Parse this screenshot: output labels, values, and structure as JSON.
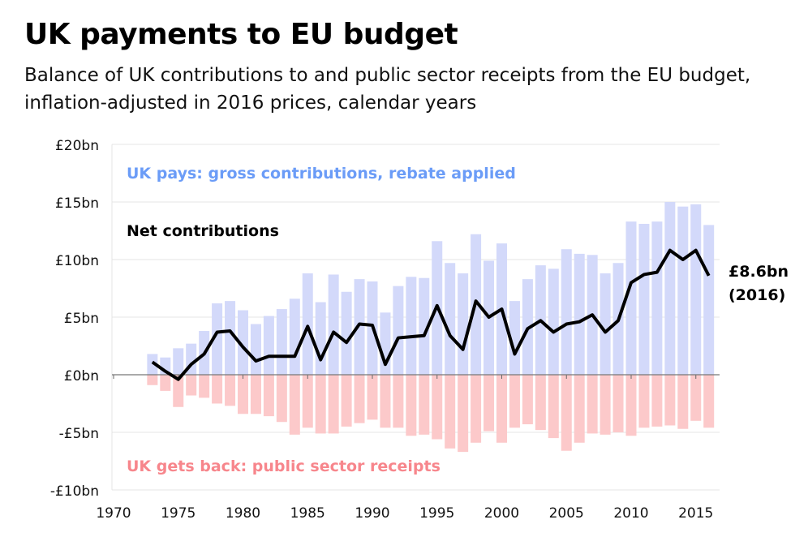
{
  "chart_data": {
    "type": "bar",
    "title": "UK payments to EU budget",
    "subtitle": "Balance of UK contributions to and public sector receipts from the EU budget, inflation-adjusted in 2016 prices, calendar years",
    "xlabel": "",
    "ylabel": "",
    "ylim": [
      -10,
      20
    ],
    "xlim": [
      1970,
      2016
    ],
    "yticks": [
      {
        "value": 20,
        "label": "£20bn"
      },
      {
        "value": 15,
        "label": "£15bn"
      },
      {
        "value": 10,
        "label": "£10bn"
      },
      {
        "value": 5,
        "label": "£5bn"
      },
      {
        "value": 0,
        "label": "£0bn"
      },
      {
        "value": -5,
        "label": "-£5bn"
      },
      {
        "value": -10,
        "label": "-£10bn"
      }
    ],
    "xticks": [
      1970,
      1975,
      1980,
      1985,
      1990,
      1995,
      2000,
      2005,
      2010,
      2015
    ],
    "grid": true,
    "x": [
      1973,
      1974,
      1975,
      1976,
      1977,
      1978,
      1979,
      1980,
      1981,
      1982,
      1983,
      1984,
      1985,
      1986,
      1987,
      1988,
      1989,
      1990,
      1991,
      1992,
      1993,
      1994,
      1995,
      1996,
      1997,
      1998,
      1999,
      2000,
      2001,
      2002,
      2003,
      2004,
      2005,
      2006,
      2007,
      2008,
      2009,
      2010,
      2011,
      2012,
      2013,
      2014,
      2015,
      2016
    ],
    "series": [
      {
        "name": "UK pays: gross contributions, rebate applied",
        "type": "bar",
        "color": "#d3d9fa",
        "label_color": "#6b9cf7",
        "values": [
          1.8,
          1.5,
          2.3,
          2.7,
          3.8,
          6.2,
          6.4,
          5.6,
          4.4,
          5.1,
          5.7,
          6.6,
          8.8,
          6.3,
          8.7,
          7.2,
          8.3,
          8.1,
          5.4,
          7.7,
          8.5,
          8.4,
          11.6,
          9.7,
          8.8,
          12.2,
          9.9,
          11.4,
          6.4,
          8.3,
          9.5,
          9.2,
          10.9,
          10.5,
          10.4,
          8.8,
          9.7,
          13.3,
          13.1,
          13.3,
          15.0,
          14.6,
          14.8,
          13.0
        ]
      },
      {
        "name": "UK gets back: public sector receipts",
        "type": "bar",
        "color": "#fcc9ca",
        "label_color": "#f7868c",
        "values": [
          -0.9,
          -1.4,
          -2.8,
          -1.8,
          -2.0,
          -2.5,
          -2.7,
          -3.4,
          -3.4,
          -3.6,
          -4.1,
          -5.2,
          -4.6,
          -5.1,
          -5.1,
          -4.5,
          -4.2,
          -3.9,
          -4.6,
          -4.6,
          -5.3,
          -5.2,
          -5.6,
          -6.4,
          -6.7,
          -5.9,
          -4.9,
          -5.9,
          -4.6,
          -4.3,
          -4.8,
          -5.5,
          -6.6,
          -5.9,
          -5.1,
          -5.2,
          -5.0,
          -5.3,
          -4.6,
          -4.5,
          -4.4,
          -4.7,
          -4.0,
          -4.6
        ]
      },
      {
        "name": "Net contributions",
        "type": "line",
        "color": "#000000",
        "label_color": "#000000",
        "values": [
          1.1,
          0.3,
          -0.4,
          0.9,
          1.8,
          3.7,
          3.8,
          2.4,
          1.2,
          1.6,
          1.6,
          1.6,
          4.2,
          1.3,
          3.7,
          2.8,
          4.4,
          4.3,
          0.9,
          3.2,
          3.3,
          3.4,
          6.0,
          3.4,
          2.2,
          6.4,
          5.0,
          5.7,
          1.8,
          4.0,
          4.7,
          3.7,
          4.4,
          4.6,
          5.2,
          3.7,
          4.7,
          8.0,
          8.7,
          8.9,
          10.8,
          10.0,
          10.8,
          8.6
        ]
      }
    ],
    "annotations": [
      {
        "text_line1": "£8.6bn",
        "text_line2": "(2016)"
      }
    ]
  }
}
